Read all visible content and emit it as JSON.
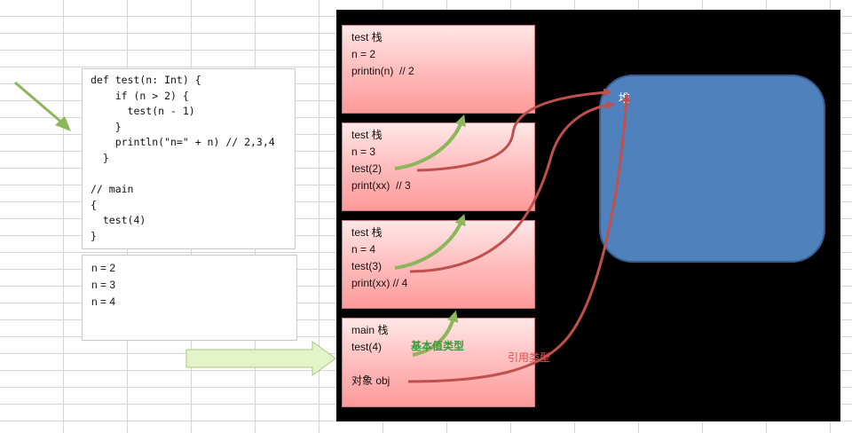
{
  "code": {
    "lines": [
      "def test(n: Int) {",
      "    if (n > 2) {",
      "      test(n - 1)",
      "    }",
      "    println(\"n=\" + n) // 2,3,4",
      "  }",
      "",
      "// main",
      "{",
      "  test(4)",
      "}"
    ]
  },
  "output": {
    "lines": [
      "n = 2",
      "n = 3",
      "n = 4"
    ]
  },
  "stack_frames": [
    {
      "lines": [
        "test 栈",
        "n = 2",
        "printin(n)  // 2"
      ]
    },
    {
      "lines": [
        "test 栈",
        "n = 3",
        "test(2)",
        "print(xx)  // 3"
      ]
    },
    {
      "lines": [
        "test 栈",
        "n = 4",
        "test(3)",
        "print(xx) // 4"
      ]
    },
    {
      "lines": [
        "main 栈",
        "test(4)",
        "",
        "对象 obj"
      ]
    }
  ],
  "heap": {
    "label": "堆"
  },
  "annotations": {
    "primitive": "基本值类型",
    "reference": "引用类型"
  },
  "colors": {
    "canvas": "#000000",
    "heap_fill": "#4f81bd",
    "frame_fill": "#ffb9b9",
    "primitive_arrow": "#8db55a",
    "reference_arrow": "#c0504d",
    "pointer_arrow_fill": "#e3f5c8"
  }
}
